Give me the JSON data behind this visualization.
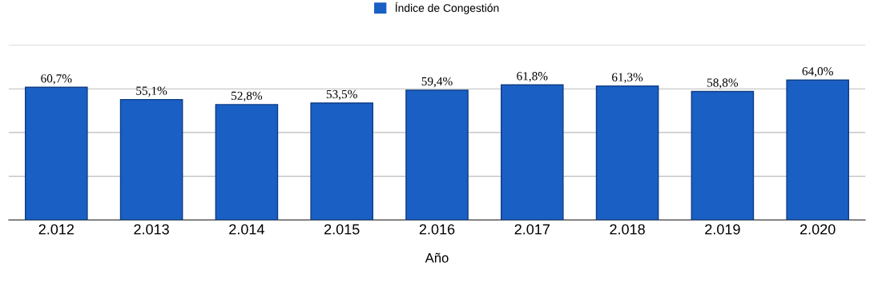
{
  "chart_data": {
    "type": "bar",
    "xlabel": "Año",
    "categories": [
      "2.012",
      "2.013",
      "2.014",
      "2.015",
      "2.016",
      "2.017",
      "2.018",
      "2.019",
      "2.020"
    ],
    "series": [
      {
        "name": "Índice de Congestión",
        "color": "#1a5fc4",
        "values": [
          60.7,
          55.1,
          52.8,
          53.5,
          59.4,
          61.8,
          61.3,
          58.8,
          64.0
        ],
        "value_labels": [
          "60,7%",
          "55,1%",
          "52,8%",
          "53,5%",
          "59,4%",
          "61,8%",
          "61,3%",
          "58,8%",
          "64,0%"
        ]
      }
    ],
    "ylim": [
      0,
      80
    ],
    "yticks": [
      {
        "value": 0,
        "label": null
      },
      {
        "value": 20,
        "label": null
      },
      {
        "value": 40,
        "label": null
      },
      {
        "value": 60,
        "label": null
      },
      {
        "value": 80,
        "label": null
      }
    ],
    "grid": "y",
    "legend": "top",
    "tick_labels": "x"
  }
}
